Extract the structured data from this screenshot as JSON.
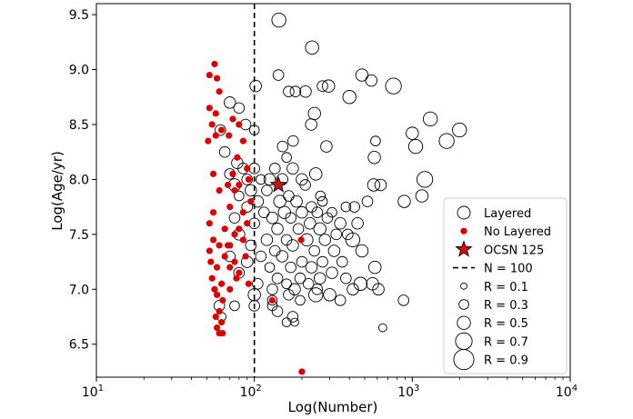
{
  "chart_data": {
    "type": "scatter",
    "xlabel": "Log(Number)",
    "ylabel": "Log(Age/yr)",
    "xscale": "log",
    "xlim": [
      10,
      10000
    ],
    "ylim": [
      6.2,
      9.6
    ],
    "x_ticks": [
      {
        "value": 10,
        "base": "10",
        "exp": "1"
      },
      {
        "value": 100,
        "base": "10",
        "exp": "2"
      },
      {
        "value": 1000,
        "base": "10",
        "exp": "3"
      },
      {
        "value": 10000,
        "base": "10",
        "exp": "4"
      }
    ],
    "y_ticks": [
      "6.5",
      "7.0",
      "7.5",
      "8.0",
      "8.5",
      "9.0",
      "9.5"
    ],
    "grid": false,
    "legend_position": "lower-right",
    "legend": [
      {
        "label": "Layered",
        "marker": "open-circle"
      },
      {
        "label": "No Layered",
        "marker": "red-dot"
      },
      {
        "label": "OCSN 125",
        "marker": "red-star"
      },
      {
        "label": "N = 100",
        "marker": "dashed-line"
      },
      {
        "label": "R = 0.1",
        "marker": "size",
        "r": 0.1
      },
      {
        "label": "R = 0.3",
        "marker": "size",
        "r": 0.3
      },
      {
        "label": "R = 0.5",
        "marker": "size",
        "r": 0.5
      },
      {
        "label": "R = 0.7",
        "marker": "size",
        "r": 0.7
      },
      {
        "label": "R = 0.9",
        "marker": "size",
        "r": 0.9
      }
    ],
    "reference_line": {
      "x": 100,
      "label": "N = 100"
    },
    "colors": {
      "layered_edge": "#000000",
      "no_layered": "#dd0000",
      "star": "#cc1111",
      "star_edge": "#000000"
    },
    "highlight": {
      "name": "OCSN 125",
      "x": 142,
      "y": 7.95
    },
    "series": [
      {
        "name": "Layered",
        "points": [
          [
            143,
            9.45,
            0.55
          ],
          [
            232,
            9.2,
            0.5
          ],
          [
            142,
            8.95,
            0.35
          ],
          [
            480,
            8.95,
            0.45
          ],
          [
            550,
            8.9,
            0.4
          ],
          [
            295,
            8.85,
            0.45
          ],
          [
            760,
            8.85,
            0.65
          ],
          [
            270,
            8.85,
            0.35
          ],
          [
            102,
            8.85,
            0.4
          ],
          [
            165,
            8.8,
            0.35
          ],
          [
            182,
            8.8,
            0.35
          ],
          [
            211,
            8.8,
            0.4
          ],
          [
            400,
            8.75,
            0.5
          ],
          [
            70,
            8.7,
            0.4
          ],
          [
            80,
            8.65,
            0.35
          ],
          [
            240,
            8.6,
            0.45
          ],
          [
            1300,
            8.55,
            0.55
          ],
          [
            1990,
            8.45,
            0.55
          ],
          [
            61,
            8.45,
            0.35
          ],
          [
            88,
            8.5,
            0.35
          ],
          [
            229,
            8.5,
            0.4
          ],
          [
            100,
            8.45,
            0.3
          ],
          [
            1000,
            8.42,
            0.45
          ],
          [
            176,
            8.35,
            0.35
          ],
          [
            585,
            8.35,
            0.3
          ],
          [
            1650,
            8.35,
            0.6
          ],
          [
            1050,
            8.3,
            0.55
          ],
          [
            151,
            8.3,
            0.35
          ],
          [
            286,
            8.3,
            0.4
          ],
          [
            65,
            8.25,
            0.35
          ],
          [
            575,
            8.2,
            0.45
          ],
          [
            160,
            8.2,
            0.3
          ],
          [
            78,
            8.15,
            0.4
          ],
          [
            85,
            8.1,
            0.35
          ],
          [
            100,
            8.1,
            0.35
          ],
          [
            135,
            8.1,
            0.35
          ],
          [
            175,
            8.1,
            0.4
          ],
          [
            245,
            8.05,
            0.45
          ],
          [
            70,
            8.05,
            0.35
          ],
          [
            90,
            8.0,
            0.35
          ],
          [
            110,
            8.0,
            0.3
          ],
          [
            125,
            8.0,
            0.4
          ],
          [
            150,
            8.0,
            0.4
          ],
          [
            200,
            8.0,
            0.4
          ],
          [
            1200,
            8.0,
            0.65
          ],
          [
            570,
            7.95,
            0.45
          ],
          [
            630,
            7.95,
            0.4
          ],
          [
            210,
            7.95,
            0.35
          ],
          [
            75,
            7.95,
            0.45
          ],
          [
            95,
            7.9,
            0.4
          ],
          [
            120,
            7.9,
            0.35
          ],
          [
            165,
            7.85,
            0.35
          ],
          [
            262,
            7.85,
            0.3
          ],
          [
            1150,
            7.85,
            0.45
          ],
          [
            889,
            7.8,
            0.45
          ],
          [
            520,
            7.8,
            0.35
          ],
          [
            80,
            7.85,
            0.3
          ],
          [
            105,
            7.8,
            0.4
          ],
          [
            145,
            7.8,
            0.45
          ],
          [
            185,
            7.8,
            0.4
          ],
          [
            230,
            7.75,
            0.35
          ],
          [
            270,
            7.8,
            0.3
          ],
          [
            380,
            7.75,
            0.3
          ],
          [
            430,
            7.75,
            0.35
          ],
          [
            90,
            7.75,
            0.35
          ],
          [
            115,
            7.7,
            0.35
          ],
          [
            155,
            7.7,
            0.45
          ],
          [
            200,
            7.7,
            0.4
          ],
          [
            250,
            7.7,
            0.35
          ],
          [
            310,
            7.7,
            0.3
          ],
          [
            75,
            7.65,
            0.35
          ],
          [
            130,
            7.65,
            0.4
          ],
          [
            170,
            7.65,
            0.35
          ],
          [
            225,
            7.6,
            0.4
          ],
          [
            290,
            7.65,
            0.35
          ],
          [
            350,
            7.6,
            0.4
          ],
          [
            450,
            7.6,
            0.4
          ],
          [
            100,
            7.6,
            0.35
          ],
          [
            140,
            7.55,
            0.4
          ],
          [
            190,
            7.55,
            0.35
          ],
          [
            260,
            7.55,
            0.45
          ],
          [
            330,
            7.5,
            0.35
          ],
          [
            390,
            7.5,
            0.35
          ],
          [
            80,
            7.5,
            0.4
          ],
          [
            120,
            7.45,
            0.4
          ],
          [
            160,
            7.45,
            0.35
          ],
          [
            215,
            7.45,
            0.45
          ],
          [
            280,
            7.45,
            0.4
          ],
          [
            420,
            7.45,
            0.55
          ],
          [
            95,
            7.4,
            0.35
          ],
          [
            135,
            7.35,
            0.35
          ],
          [
            175,
            7.4,
            0.4
          ],
          [
            240,
            7.35,
            0.35
          ],
          [
            320,
            7.35,
            0.4
          ],
          [
            480,
            7.35,
            0.45
          ],
          [
            70,
            7.3,
            0.35
          ],
          [
            110,
            7.3,
            0.35
          ],
          [
            150,
            7.3,
            0.4
          ],
          [
            200,
            7.25,
            0.35
          ],
          [
            270,
            7.25,
            0.35
          ],
          [
            360,
            7.25,
            0.35
          ],
          [
            90,
            7.25,
            0.4
          ],
          [
            125,
            7.2,
            0.3
          ],
          [
            170,
            7.2,
            0.35
          ],
          [
            230,
            7.2,
            0.4
          ],
          [
            310,
            7.15,
            0.4
          ],
          [
            580,
            7.2,
            0.45
          ],
          [
            80,
            7.15,
            0.35
          ],
          [
            140,
            7.1,
            0.35
          ],
          [
            195,
            7.1,
            0.35
          ],
          [
            260,
            7.1,
            0.4
          ],
          [
            380,
            7.1,
            0.35
          ],
          [
            105,
            7.05,
            0.35
          ],
          [
            160,
            7.05,
            0.3
          ],
          [
            220,
            7.05,
            0.35
          ],
          [
            470,
            7.05,
            0.5
          ],
          [
            560,
            7.05,
            0.45
          ],
          [
            130,
            7.0,
            0.35
          ],
          [
            180,
            7.0,
            0.4
          ],
          [
            250,
            7.0,
            0.35
          ],
          [
            420,
            7.0,
            0.4
          ],
          [
            610,
            7.0,
            0.4
          ],
          [
            100,
            6.95,
            0.45
          ],
          [
            165,
            6.95,
            0.35
          ],
          [
            245,
            6.95,
            0.55
          ],
          [
            300,
            6.95,
            0.45
          ],
          [
            350,
            6.9,
            0.35
          ],
          [
            880,
            6.9,
            0.35
          ],
          [
            130,
            6.9,
            0.3
          ],
          [
            195,
            6.9,
            0.3
          ],
          [
            75,
            6.85,
            0.3
          ],
          [
            100,
            6.85,
            0.35
          ],
          [
            130,
            6.85,
            0.3
          ],
          [
            60,
            6.85,
            0.35
          ],
          [
            175,
            6.75,
            0.35
          ],
          [
            140,
            6.8,
            0.35
          ],
          [
            160,
            6.7,
            0.25
          ],
          [
            180,
            6.7,
            0.2
          ],
          [
            650,
            6.65,
            0.2
          ],
          [
            62,
            6.75,
            0.25
          ]
        ]
      },
      {
        "name": "No Layered",
        "points": [
          [
            56,
            9.05
          ],
          [
            52,
            8.95
          ],
          [
            58,
            8.92
          ],
          [
            60,
            8.8
          ],
          [
            57,
            8.6
          ],
          [
            52,
            8.65
          ],
          [
            73,
            8.55
          ],
          [
            54,
            8.5
          ],
          [
            62,
            8.45
          ],
          [
            80,
            8.5
          ],
          [
            85,
            8.35
          ],
          [
            69,
            8.4
          ],
          [
            57,
            8.4
          ],
          [
            51,
            8.35
          ],
          [
            78,
            8.2
          ],
          [
            90,
            8.1
          ],
          [
            73,
            8.05
          ],
          [
            55,
            8.05
          ],
          [
            92,
            8.0
          ],
          [
            68,
            7.95
          ],
          [
            80,
            7.95
          ],
          [
            60,
            7.9
          ],
          [
            75,
            7.9
          ],
          [
            95,
            7.8
          ],
          [
            55,
            7.7
          ],
          [
            70,
            7.75
          ],
          [
            85,
            7.7
          ],
          [
            90,
            7.6
          ],
          [
            52,
            7.6
          ],
          [
            65,
            7.55
          ],
          [
            75,
            7.5
          ],
          [
            80,
            7.55
          ],
          [
            55,
            7.45
          ],
          [
            60,
            7.4
          ],
          [
            70,
            7.4
          ],
          [
            85,
            7.45
          ],
          [
            198,
            7.45
          ],
          [
            52,
            7.35
          ],
          [
            65,
            7.3
          ],
          [
            75,
            7.25
          ],
          [
            58,
            7.2
          ],
          [
            70,
            7.2
          ],
          [
            80,
            7.15
          ],
          [
            88,
            7.3
          ],
          [
            54,
            7.1
          ],
          [
            62,
            7.05
          ],
          [
            77,
            7.1
          ],
          [
            56,
            7.0
          ],
          [
            70,
            7.0
          ],
          [
            58,
            6.95
          ],
          [
            63,
            6.9
          ],
          [
            60,
            6.8
          ],
          [
            57,
            6.75
          ],
          [
            62,
            6.7
          ],
          [
            58,
            6.65
          ],
          [
            60,
            6.6
          ],
          [
            63,
            6.6
          ],
          [
            130,
            6.9
          ],
          [
            200,
            6.25
          ],
          [
            53,
            7.25
          ],
          [
            68,
            7.4
          ],
          [
            92,
            7.05
          ]
        ]
      }
    ]
  }
}
